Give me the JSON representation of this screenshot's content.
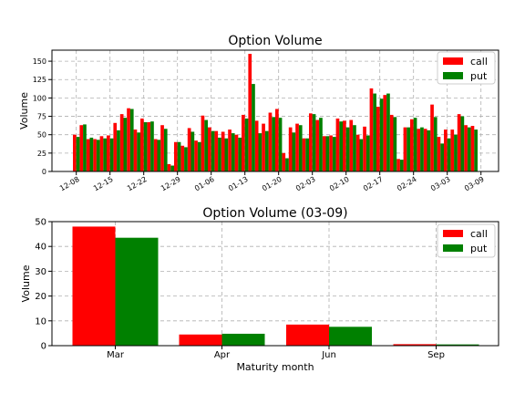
{
  "chart_data": [
    {
      "type": "bar",
      "title": "Option Volume",
      "xlabel": "",
      "ylabel": "Volume",
      "ylim": [
        0,
        165
      ],
      "yticks": [
        0,
        25,
        50,
        75,
        100,
        125,
        150
      ],
      "grid": true,
      "legend_position": "top-right",
      "x_tick_labels": [
        "12-08",
        "12-15",
        "12-22",
        "12-29",
        "01-06",
        "01-13",
        "01-20",
        "02-03",
        "02-10",
        "02-17",
        "02-24",
        "03-03",
        "03-09"
      ],
      "x_tick_indices": [
        0,
        5,
        10,
        15,
        20,
        25,
        30,
        35,
        40,
        45,
        50,
        55,
        60
      ],
      "series": [
        {
          "name": "call",
          "color": "#ff0000",
          "values": [
            50,
            63,
            44,
            44,
            48,
            49,
            66,
            78,
            86,
            57,
            72,
            67,
            44,
            63,
            10,
            40,
            35,
            59,
            42,
            76,
            60,
            55,
            54,
            57,
            50,
            77,
            160,
            69,
            65,
            80,
            85,
            25,
            60,
            65,
            45,
            79,
            70,
            48,
            49,
            72,
            69,
            70,
            50,
            61,
            113,
            88,
            104,
            77,
            17,
            60,
            71,
            58,
            58,
            91,
            47,
            57,
            57,
            78,
            63,
            62
          ]
        },
        {
          "name": "put",
          "color": "#008000",
          "values": [
            47,
            64,
            46,
            43,
            45,
            45,
            56,
            73,
            85,
            53,
            67,
            68,
            43,
            58,
            8,
            40,
            33,
            54,
            40,
            70,
            55,
            46,
            45,
            52,
            46,
            72,
            119,
            52,
            55,
            74,
            73,
            18,
            53,
            63,
            45,
            78,
            73,
            48,
            47,
            68,
            60,
            63,
            44,
            49,
            106,
            99,
            106,
            74,
            16,
            60,
            73,
            60,
            56,
            74,
            38,
            45,
            50,
            75,
            60,
            57
          ]
        }
      ]
    },
    {
      "type": "bar",
      "title": "Option Volume (03-09)",
      "xlabel": "Maturity month",
      "ylabel": "Volume",
      "ylim": [
        0,
        50
      ],
      "yticks": [
        0,
        10,
        20,
        30,
        40,
        50
      ],
      "grid": true,
      "legend_position": "top-right",
      "categories": [
        "Mar",
        "Apr",
        "Jun",
        "Sep"
      ],
      "series": [
        {
          "name": "call",
          "color": "#ff0000",
          "values": [
            48,
            4.5,
            8.5,
            0.6
          ]
        },
        {
          "name": "put",
          "color": "#008000",
          "values": [
            43.5,
            4.8,
            7.6,
            0.5
          ]
        }
      ]
    }
  ]
}
